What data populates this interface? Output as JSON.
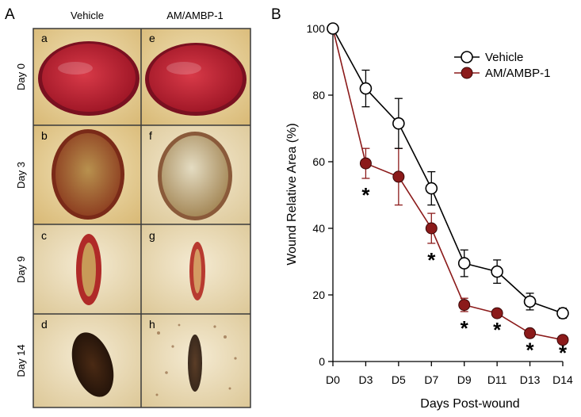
{
  "panel_a": {
    "label": "A",
    "columns": [
      "Vehicle",
      "AM/AMBP-1"
    ],
    "rows": [
      "Day 0",
      "Day 3",
      "Day 9",
      "Day 14"
    ],
    "cell_labels": [
      [
        "a",
        "e"
      ],
      [
        "b",
        "f"
      ],
      [
        "c",
        "g"
      ],
      [
        "d",
        "h"
      ]
    ],
    "colors": {
      "wound_red": "#c02a3a",
      "healing_tan": "#a8793e",
      "scab_dark": "#2f1a0f",
      "skin": "#e6d29a",
      "frame": "#3a3a3a"
    }
  },
  "chart_data": {
    "panel_label": "B",
    "type": "line",
    "title": "",
    "xlabel": "Days Post-wound",
    "ylabel": "Wound Relative Area (%)",
    "categories": [
      "D0",
      "D3",
      "D5",
      "D7",
      "D9",
      "D11",
      "D13",
      "D14"
    ],
    "ylim": [
      0,
      100
    ],
    "yticks": [
      "0",
      "20",
      "40",
      "60",
      "80",
      "100"
    ],
    "legend_position": "top-right",
    "series": [
      {
        "name": "Vehicle",
        "marker": "open-circle",
        "color": "#000000",
        "values": [
          100,
          82,
          71.5,
          52,
          29.5,
          27,
          18,
          14.5
        ],
        "errors": [
          0,
          5.5,
          7.5,
          5,
          4,
          3.5,
          2.5,
          1.5
        ]
      },
      {
        "name": "AM/AMBP-1",
        "marker": "filled-circle",
        "color": "#8b1a1a",
        "values": [
          100,
          59.5,
          55.5,
          40,
          17,
          14.5,
          8.5,
          6.5
        ],
        "errors": [
          0,
          4.5,
          8.5,
          4.5,
          2,
          0,
          0,
          0
        ]
      }
    ],
    "significance": {
      "symbol": "*",
      "categories": [
        "D3",
        "D7",
        "D9",
        "D11",
        "D13",
        "D14"
      ]
    }
  }
}
